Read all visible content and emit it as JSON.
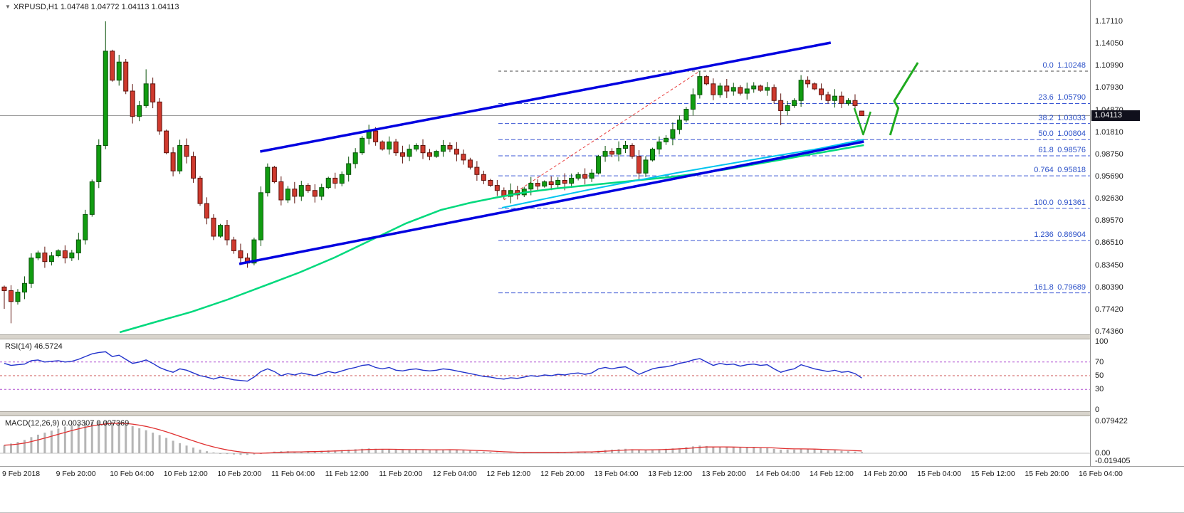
{
  "header": {
    "symbol_ohlc": "XRPUSD,H1 1.04748 1.04772 1.04113 1.04113"
  },
  "colors": {
    "up": "#119c11",
    "up_edge": "#0a520a",
    "down": "#cf3a2e",
    "down_edge": "#5e120c",
    "ma": "#00d97d",
    "channel": "#0000e0",
    "cyan": "#00c4ee",
    "fib": "#3a56d4",
    "fib_zero": "#444444",
    "fib_diag": "#e84040",
    "price_line": "#9a9a9a",
    "rsi_line": "#2233cc",
    "rsi_level_outer": "#b050d0",
    "rsi_level_mid": "#cc5555",
    "macd_hist": "#b5b5b5",
    "macd_signal": "#e03030",
    "annotation": "#1faa1f",
    "badge_bg": "#10101c"
  },
  "price_axis": {
    "labels": [
      "1.17110",
      "1.14050",
      "1.10990",
      "1.07930",
      "1.04870",
      "1.01810",
      "0.98750",
      "0.95690",
      "0.92630",
      "0.89570",
      "0.86510",
      "0.83450",
      "0.80390",
      "0.77420",
      "0.74360"
    ],
    "current": "1.04113"
  },
  "indicators": {
    "rsi": {
      "label": "RSI(14) 46.5724",
      "axis": [
        "100",
        "70",
        "50",
        "30",
        "0"
      ],
      "axis_values": [
        100,
        70,
        50,
        30,
        0
      ],
      "levels": [
        70,
        50,
        30
      ]
    },
    "macd": {
      "label": "MACD(12,26,9) 0.003307 0.007369",
      "axis": [
        "0.079422",
        "0.00",
        "-0.019405"
      ]
    }
  },
  "fibonacci": [
    {
      "name": "0.0",
      "price": "1.10248",
      "value": 1.10248
    },
    {
      "name": "23.6",
      "price": "1.05790",
      "value": 1.0579
    },
    {
      "name": "38.2",
      "price": "1.03033",
      "value": 1.03033
    },
    {
      "name": "50.0",
      "price": "1.00804",
      "value": 1.00804
    },
    {
      "name": "61.8",
      "price": "0.98576",
      "value": 0.98576
    },
    {
      "name": "0.764",
      "price": "0.95818",
      "value": 0.95818
    },
    {
      "name": "100.0",
      "price": "0.91361",
      "value": 0.91361
    },
    {
      "name": "1.236",
      "price": "0.86904",
      "value": 0.86904
    },
    {
      "name": "161.8",
      "price": "0.79689",
      "value": 0.79689
    }
  ],
  "time_axis": [
    "9 Feb 2018",
    "9 Feb 20:00",
    "10 Feb 04:00",
    "10 Feb 12:00",
    "10 Feb 20:00",
    "11 Feb 04:00",
    "11 Feb 12:00",
    "11 Feb 20:00",
    "12 Feb 04:00",
    "12 Feb 12:00",
    "12 Feb 20:00",
    "13 Feb 04:00",
    "13 Feb 12:00",
    "13 Feb 20:00",
    "14 Feb 04:00",
    "14 Feb 12:00",
    "14 Feb 20:00",
    "15 Feb 04:00",
    "15 Feb 12:00",
    "15 Feb 20:00",
    "16 Feb 04:00"
  ],
  "chart_data": [
    {
      "type": "candlestick",
      "title": "XRPUSD,H1",
      "ylim": [
        0.7436,
        1.1711
      ],
      "interval": "H1",
      "current_price": 1.04113,
      "open_first": 0.805,
      "closes": [
        0.8,
        0.785,
        0.798,
        0.81,
        0.845,
        0.852,
        0.84,
        0.848,
        0.855,
        0.845,
        0.852,
        0.87,
        0.905,
        0.95,
        1.0,
        1.13,
        1.09,
        1.115,
        1.075,
        1.04,
        1.055,
        1.085,
        1.06,
        1.02,
        0.99,
        0.965,
        1.0,
        0.985,
        0.955,
        0.92,
        0.9,
        0.875,
        0.89,
        0.87,
        0.855,
        0.845,
        0.838,
        0.87,
        0.935,
        0.97,
        0.95,
        0.925,
        0.94,
        0.93,
        0.945,
        0.938,
        0.93,
        0.942,
        0.955,
        0.948,
        0.96,
        0.975,
        0.99,
        1.01,
        1.02,
        1.005,
        0.995,
        1.005,
        0.99,
        0.985,
        0.995,
        1.0,
        0.99,
        0.985,
        0.992,
        1.0,
        0.995,
        0.988,
        0.98,
        0.97,
        0.96,
        0.952,
        0.945,
        0.938,
        0.93,
        0.938,
        0.932,
        0.94,
        0.948,
        0.944,
        0.95,
        0.946,
        0.952,
        0.948,
        0.955,
        0.96,
        0.955,
        0.962,
        0.985,
        0.992,
        0.988,
        0.996,
        1.0,
        0.985,
        0.962,
        0.98,
        0.995,
        1.005,
        1.01,
        1.022,
        1.035,
        1.05,
        1.07,
        1.095,
        1.085,
        1.07,
        1.082,
        1.075,
        1.08,
        1.072,
        1.078,
        1.082,
        1.076,
        1.08,
        1.062,
        1.048,
        1.055,
        1.062,
        1.09,
        1.085,
        1.078,
        1.07,
        1.062,
        1.068,
        1.058,
        1.062,
        1.055,
        1.04113
      ],
      "overrides": {
        "0": {
          "l": 0.775
        },
        "1": {
          "l": 0.755
        },
        "15": {
          "h": 1.1711,
          "l": 0.995
        },
        "17": {
          "h": 1.125
        },
        "21": {
          "h": 1.105
        },
        "26": {
          "h": 1.008
        },
        "94": {
          "l": 0.953
        },
        "103": {
          "h": 1.10248
        },
        "115": {
          "l": 1.028
        },
        "118": {
          "h": 1.097
        },
        "127": {
          "o": 1.04748,
          "h": 1.04772,
          "l": 1.04113,
          "c": 1.04113
        }
      },
      "overlays": {
        "channel_upper": [
          [
            37.9,
            0.9917
          ],
          [
            122.4,
            1.1417
          ]
        ],
        "channel_lower": [
          [
            34.8,
            0.8368
          ],
          [
            127.3,
            1.0054
          ]
        ],
        "fib_diagonal": [
          [
            74.0,
            0.925
          ],
          [
            103.0,
            1.1025
          ]
        ],
        "cyan_line": [
          [
            73.7,
            0.9142
          ],
          [
            86.9,
            0.9397
          ],
          [
            99.5,
            0.9622
          ],
          [
            111.1,
            0.9809
          ],
          [
            120.6,
            0.9956
          ],
          [
            127.3,
            1.0083
          ]
        ],
        "ma_line": [
          [
            17.1,
            0.7426
          ],
          [
            22.6,
            0.7573
          ],
          [
            27.8,
            0.771
          ],
          [
            33.1,
            0.7877
          ],
          [
            38.4,
            0.8063
          ],
          [
            43.7,
            0.825
          ],
          [
            48.9,
            0.8456
          ],
          [
            54.2,
            0.8691
          ],
          [
            59.5,
            0.8927
          ],
          [
            64.7,
            0.9113
          ],
          [
            69.0,
            0.9211
          ],
          [
            73.2,
            0.9289
          ],
          [
            77.4,
            0.9358
          ],
          [
            81.6,
            0.9407
          ],
          [
            85.8,
            0.9446
          ],
          [
            90.1,
            0.9485
          ],
          [
            94.3,
            0.9525
          ],
          [
            98.5,
            0.9564
          ],
          [
            102.7,
            0.9613
          ],
          [
            106.9,
            0.9672
          ],
          [
            111.1,
            0.974
          ],
          [
            115.3,
            0.9809
          ],
          [
            120.6,
            0.9897
          ],
          [
            127.3,
            1.0005
          ]
        ],
        "arrow_small": [
          [
            125.9,
            1.0515
          ],
          [
            127.2,
            1.0152
          ],
          [
            128.3,
            1.0466
          ]
        ],
        "arrow_large": [
          [
            131.2,
            1.0143
          ],
          [
            132.4,
            1.0515
          ],
          [
            131.8,
            1.0613
          ],
          [
            135.3,
            1.1142
          ]
        ]
      }
    },
    {
      "type": "line",
      "name": "RSI(14)",
      "last": 46.5724,
      "ylim": [
        0,
        100
      ],
      "levels": [
        70,
        50,
        30
      ],
      "values": [
        68,
        65,
        66,
        67,
        72,
        73,
        70,
        71,
        72,
        70,
        71,
        74,
        78,
        82,
        84,
        85,
        78,
        80,
        74,
        68,
        70,
        73,
        68,
        62,
        58,
        55,
        60,
        58,
        54,
        50,
        48,
        45,
        48,
        46,
        44,
        43,
        42,
        48,
        56,
        60,
        56,
        50,
        53,
        51,
        54,
        52,
        50,
        53,
        56,
        54,
        57,
        60,
        62,
        65,
        66,
        62,
        60,
        62,
        58,
        57,
        59,
        60,
        58,
        57,
        58,
        60,
        59,
        57,
        55,
        53,
        51,
        49,
        48,
        46,
        45,
        47,
        46,
        48,
        50,
        49,
        51,
        50,
        52,
        51,
        53,
        54,
        52,
        54,
        60,
        62,
        60,
        62,
        63,
        58,
        52,
        56,
        60,
        62,
        63,
        65,
        68,
        70,
        73,
        75,
        70,
        65,
        68,
        66,
        67,
        64,
        66,
        67,
        65,
        66,
        60,
        55,
        58,
        60,
        66,
        63,
        60,
        58,
        56,
        58,
        55,
        56,
        53,
        46.57
      ]
    },
    {
      "type": "bar",
      "name": "MACD(12,26,9)",
      "last_macd": 0.003307,
      "last_signal": 0.007369,
      "ylim": [
        -0.019405,
        0.079422
      ],
      "values": [
        0.02,
        0.024,
        0.028,
        0.033,
        0.04,
        0.046,
        0.051,
        0.056,
        0.061,
        0.066,
        0.07,
        0.073,
        0.076,
        0.078,
        0.079,
        0.0794,
        0.078,
        0.076,
        0.072,
        0.067,
        0.062,
        0.057,
        0.051,
        0.045,
        0.038,
        0.031,
        0.025,
        0.019,
        0.014,
        0.009,
        0.005,
        0.002,
        0.0,
        -0.002,
        -0.003,
        -0.004,
        -0.004,
        -0.003,
        -0.001,
        0.002,
        0.004,
        0.005,
        0.005,
        0.004,
        0.004,
        0.005,
        0.005,
        0.006,
        0.007,
        0.007,
        0.008,
        0.009,
        0.01,
        0.011,
        0.012,
        0.011,
        0.01,
        0.01,
        0.009,
        0.008,
        0.008,
        0.009,
        0.009,
        0.008,
        0.008,
        0.009,
        0.009,
        0.008,
        0.007,
        0.006,
        0.005,
        0.004,
        0.003,
        0.002,
        0.001,
        0.001,
        0.001,
        0.001,
        0.002,
        0.002,
        0.002,
        0.002,
        0.003,
        0.003,
        0.003,
        0.004,
        0.004,
        0.004,
        0.006,
        0.008,
        0.009,
        0.01,
        0.011,
        0.01,
        0.008,
        0.008,
        0.009,
        0.01,
        0.011,
        0.012,
        0.013,
        0.015,
        0.017,
        0.019,
        0.018,
        0.016,
        0.016,
        0.015,
        0.015,
        0.014,
        0.014,
        0.014,
        0.013,
        0.013,
        0.011,
        0.009,
        0.009,
        0.009,
        0.011,
        0.01,
        0.009,
        0.008,
        0.007,
        0.007,
        0.006,
        0.005,
        0.004,
        0.0033
      ]
    }
  ]
}
